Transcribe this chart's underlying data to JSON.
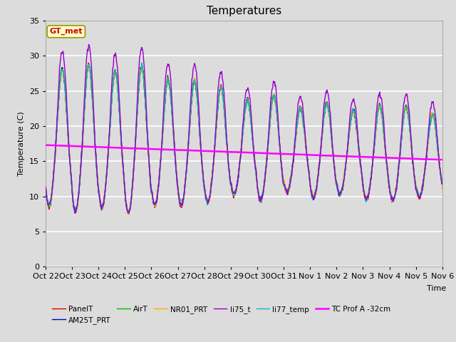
{
  "title": "Temperatures",
  "xlabel": "Time",
  "ylabel": "Temperature (C)",
  "ylim": [
    0,
    35
  ],
  "n_days": 15,
  "x_tick_labels": [
    "Oct 22",
    "Oct 23",
    "Oct 24",
    "Oct 25",
    "Oct 26",
    "Oct 27",
    "Oct 28",
    "Oct 29",
    "Oct 30",
    "Oct 31",
    "Nov 1",
    "Nov 2",
    "Nov 3",
    "Nov 4",
    "Nov 5",
    "Nov 6"
  ],
  "series": {
    "PanelT": {
      "color": "#dd0000",
      "lw": 1.0
    },
    "AM25T_PRT": {
      "color": "#0000bb",
      "lw": 1.0
    },
    "AirT": {
      "color": "#00bb00",
      "lw": 1.0
    },
    "NR01_PRT": {
      "color": "#ffaa00",
      "lw": 1.0
    },
    "li75_t": {
      "color": "#9900cc",
      "lw": 1.0
    },
    "li77_temp": {
      "color": "#00bbbb",
      "lw": 1.0
    },
    "TC Prof A -32cm": {
      "color": "#ff00ff",
      "lw": 1.8
    }
  },
  "annotation_text": "GT_met",
  "plot_bg_color": "#dcdcdc",
  "fig_bg_color": "#dcdcdc",
  "title_fontsize": 11,
  "grid_color": "#ffffff",
  "grid_lw": 1.2
}
